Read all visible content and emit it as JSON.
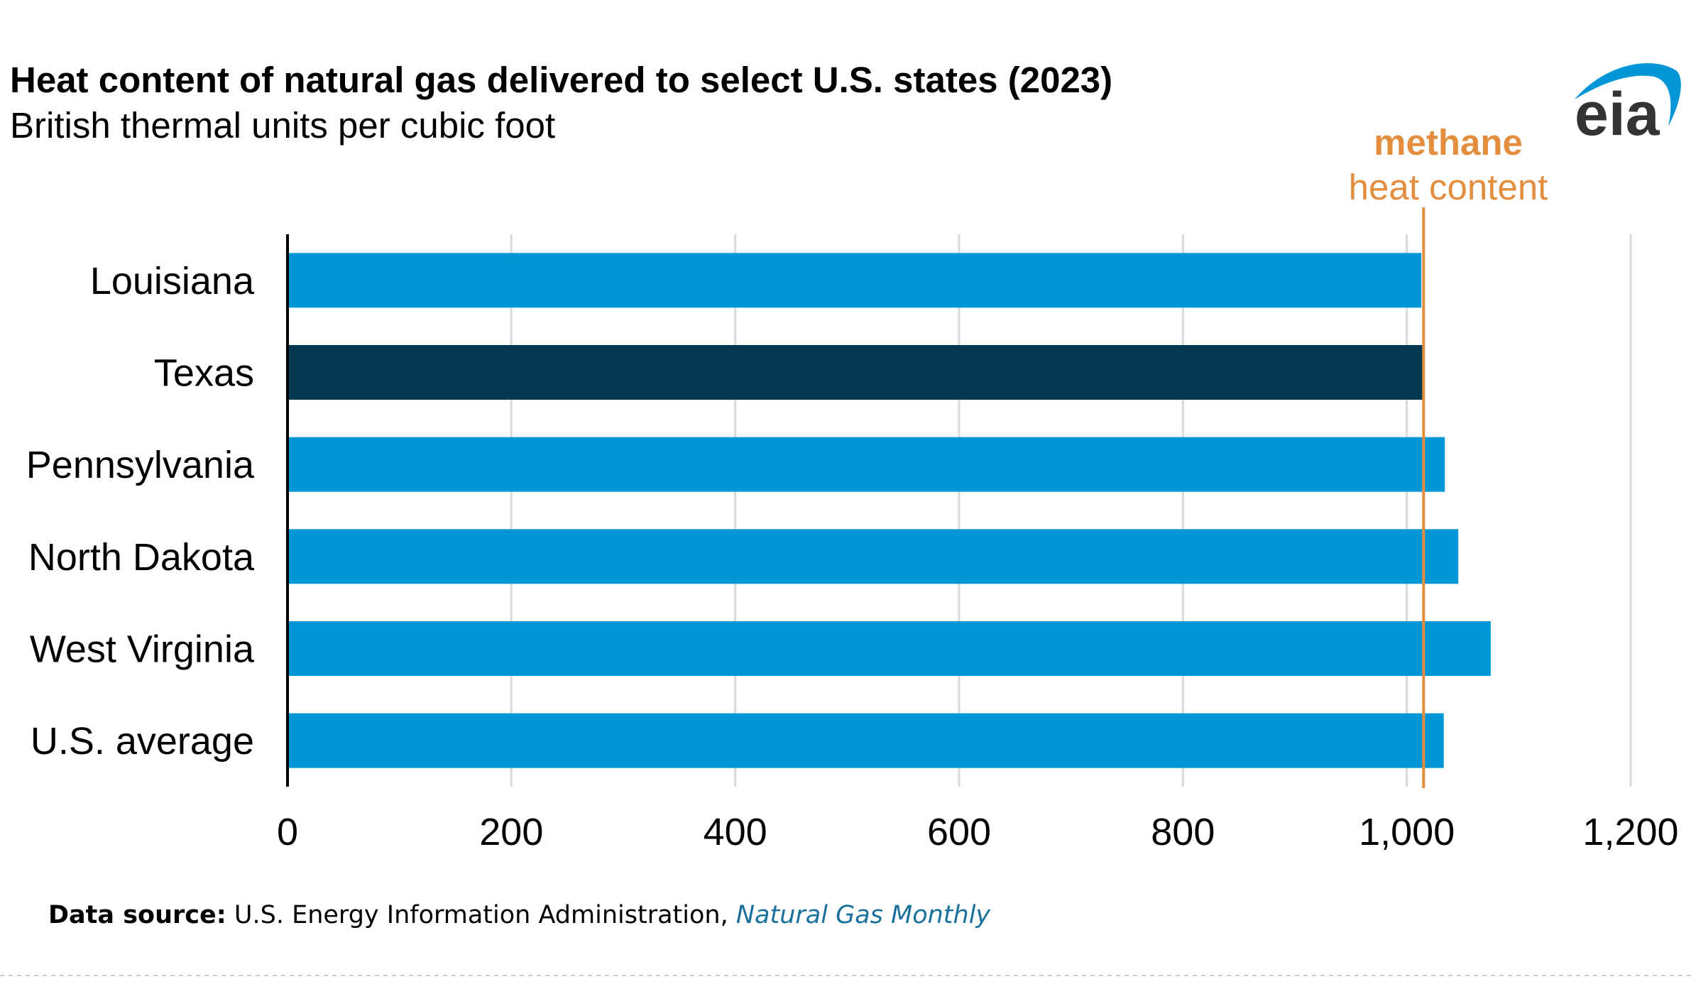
{
  "colors": {
    "bar": "#0096d7",
    "bar_highlight": "#023852",
    "reference_line": "#e38e3f",
    "grid": "#d9d9d9",
    "axis": "#000000",
    "source_link": "#19709c",
    "logo_swoosh": "#0096d7",
    "logo_text": "#333333"
  },
  "chart_data": {
    "type": "bar",
    "orientation": "horizontal",
    "title": "Heat content of natural gas delivered to select U.S. states (2023)",
    "subtitle": "British thermal units per cubic foot",
    "categories": [
      "Louisiana",
      "Texas",
      "Pennsylvania",
      "North Dakota",
      "West Virginia",
      "U.S. average"
    ],
    "values": [
      1013,
      1014,
      1034,
      1046,
      1075,
      1033
    ],
    "highlight_index": 1,
    "xlim": [
      0,
      1200
    ],
    "xticks": [
      0,
      200,
      400,
      600,
      800,
      1000,
      1200
    ],
    "xtick_labels": [
      "0",
      "200",
      "400",
      "600",
      "800",
      "1,000",
      "1,200"
    ],
    "grid": true,
    "legend": "none",
    "reference_line": {
      "value": 1015,
      "label_line1": "methane",
      "label_line2": "heat content"
    }
  },
  "footer": {
    "source_label": "Data source:",
    "source_text": " U.S. Energy Information Administration, ",
    "source_link": "Natural Gas Monthly"
  },
  "logo": {
    "text": "eia"
  }
}
